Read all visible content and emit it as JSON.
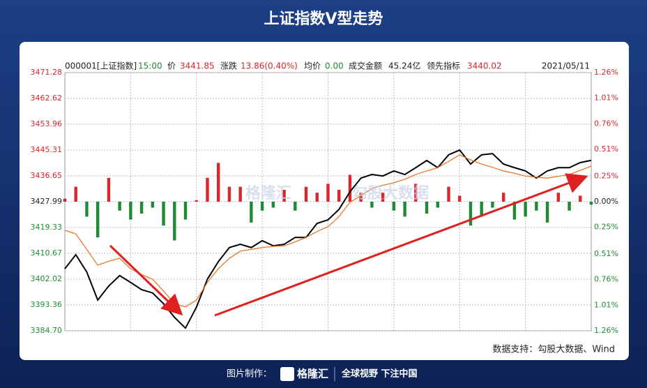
{
  "header": {
    "title": "上证指数V型走势"
  },
  "chart_data": {
    "type": "line",
    "info": {
      "code": "000001[上证指数]",
      "time": "15:00",
      "price_label": "价",
      "price": "3441.85",
      "change_label": "涨跌",
      "change": "13.86(0.40%)",
      "avg_label": "均价",
      "avg": "0.00",
      "amount_label": "成交金额",
      "amount": "45.24亿",
      "lead_label": "领先指标",
      "lead": "3440.02",
      "date": "2021/05/11"
    },
    "x": [
      0,
      5,
      10,
      15,
      20,
      25,
      30,
      35,
      40,
      45,
      50,
      55,
      60,
      65,
      70,
      75,
      80,
      85,
      90,
      95,
      100,
      105,
      110,
      115,
      120,
      125,
      130,
      135,
      140,
      145,
      150,
      155,
      160,
      165,
      170,
      175,
      180,
      185,
      190,
      195,
      200,
      205,
      210,
      215,
      220,
      225,
      230,
      235,
      240
    ],
    "xlim": [
      0,
      240
    ],
    "xticks": [
      30,
      60,
      90,
      120,
      150,
      180,
      210
    ],
    "ylim": [
      3384.7,
      3471.28
    ],
    "yticks": [
      {
        "value": 3384.7,
        "label": "3384.70"
      },
      3393.36,
      3402.02,
      3410.67,
      3419.33,
      3427.99,
      3436.65,
      3445.31,
      3453.96,
      3462.62,
      3471.28
    ],
    "y2lim": [
      -1.26,
      1.26
    ],
    "y2ticks": [
      {
        "value": -1.26,
        "label": "1.26%"
      },
      {
        "value": -1.01,
        "label": "1.01%"
      },
      {
        "value": -0.76,
        "label": "0.76%"
      },
      {
        "value": -0.51,
        "label": "0.51%"
      },
      {
        "value": -0.25,
        "label": "0.25%"
      },
      {
        "value": 0,
        "label": "0.00%"
      },
      {
        "value": 0.25,
        "label": "0.25%"
      },
      {
        "value": 0.51,
        "label": "0.51%"
      },
      {
        "value": 0.76,
        "label": "0.76%"
      },
      {
        "value": 1.01,
        "label": "1.01%"
      },
      {
        "value": 1.26,
        "label": "1.26%"
      }
    ],
    "grid": true,
    "up_color": "#d9262c",
    "down_color": "#1e8a34",
    "series": [
      {
        "color": "#000000",
        "values": [
          3405.5,
          3410.2,
          3404.4,
          3395.0,
          3399.7,
          3403.2,
          3400.9,
          3398.5,
          3397.4,
          3393.8,
          3389.2,
          3385.6,
          3392.6,
          3402.0,
          3407.9,
          3412.6,
          3413.7,
          3412.6,
          3414.9,
          3413.2,
          3413.7,
          3416.0,
          3416.0,
          3420.7,
          3421.9,
          3425.4,
          3431.3,
          3435.9,
          3437.1,
          3436.6,
          3438.3,
          3437.1,
          3439.4,
          3441.8,
          3439.4,
          3443.7,
          3445.3,
          3440.6,
          3443.7,
          3444.1,
          3440.6,
          3439.4,
          3438.3,
          3435.9,
          3438.3,
          3439.4,
          3439.4,
          3441.1,
          3441.85
        ]
      },
      {
        "color": "#e8782a",
        "values": [
          3418.4,
          3417.2,
          3412,
          3406.7,
          3408,
          3409.0,
          3405.5,
          3403.5,
          3402.0,
          3398,
          3393.8,
          3392.7,
          3395,
          3400.9,
          3405.5,
          3409,
          3411.4,
          3412,
          3412.6,
          3413,
          3413.2,
          3414.5,
          3416.0,
          3418,
          3419.6,
          3423,
          3427.8,
          3430,
          3432.4,
          3433.5,
          3434.3,
          3435.5,
          3437.1,
          3438.3,
          3439.4,
          3441.5,
          3443.7,
          3442,
          3440.6,
          3439.5,
          3438.3,
          3437.5,
          3436.6,
          3436.2,
          3435.9,
          3436.5,
          3437.1,
          3438.5,
          3439.9
        ]
      },
      {
        "type": "bar",
        "values": [
          1,
          5,
          -5,
          -12,
          8,
          -3,
          -6,
          -4,
          -2,
          -8,
          -13,
          -6,
          0.5,
          8,
          13,
          5,
          5,
          -7,
          -3,
          -2,
          4,
          -3,
          5,
          3,
          6,
          4,
          9,
          3,
          -2,
          3,
          -3,
          -5,
          6,
          -4,
          -2,
          5,
          2,
          -8,
          -5,
          -2,
          3,
          -6,
          -5,
          -3,
          -7,
          3,
          -3,
          2,
          -1
        ]
      }
    ]
  },
  "watermark": {
    "left": "格隆汇",
    "right": "勾股大数据"
  },
  "source": "数据支持：勾股大数据、Wind",
  "footer": {
    "made_by": "图片制作：",
    "brand": "格隆汇",
    "slogan": "全球视野 下注中国"
  }
}
